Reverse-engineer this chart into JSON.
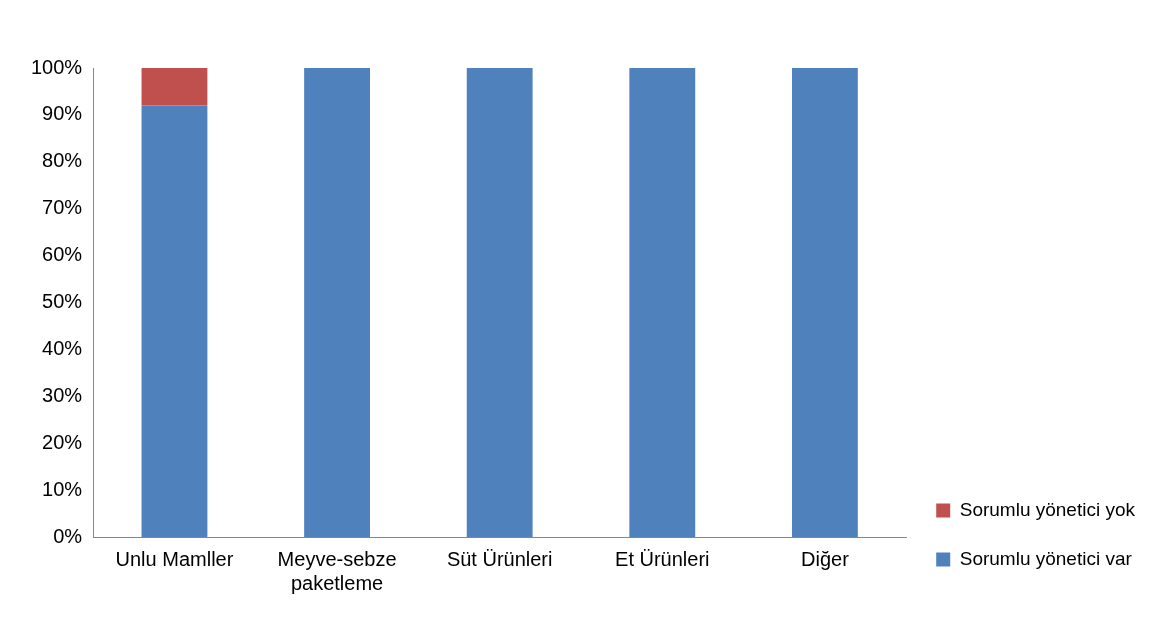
{
  "chart_data": {
    "type": "bar",
    "stacked": true,
    "categories": [
      "Unlu Mamller",
      "Meyve-sebze paketleme",
      "Süt Ürünleri",
      "Et Ürünleri",
      "Diğer"
    ],
    "series": [
      {
        "name": "Sorumlu yönetici var",
        "color": "#4f81bd",
        "values": [
          92,
          100,
          100,
          100,
          100
        ]
      },
      {
        "name": "Sorumlu yönetici yok",
        "color": "#c0504d",
        "values": [
          8,
          0,
          0,
          0,
          0
        ]
      }
    ],
    "ylim": [
      0,
      100
    ],
    "yticks": [
      {
        "value": 0,
        "label": "0%"
      },
      {
        "value": 10,
        "label": "10%"
      },
      {
        "value": 20,
        "label": "20%"
      },
      {
        "value": 30,
        "label": "30%"
      },
      {
        "value": 40,
        "label": "40%"
      },
      {
        "value": 50,
        "label": "50%"
      },
      {
        "value": 60,
        "label": "60%"
      },
      {
        "value": 70,
        "label": "70%"
      },
      {
        "value": 80,
        "label": "80%"
      },
      {
        "value": 90,
        "label": "90%"
      },
      {
        "value": 100,
        "label": "100%"
      }
    ],
    "grid": false,
    "legend": "bottom right"
  }
}
